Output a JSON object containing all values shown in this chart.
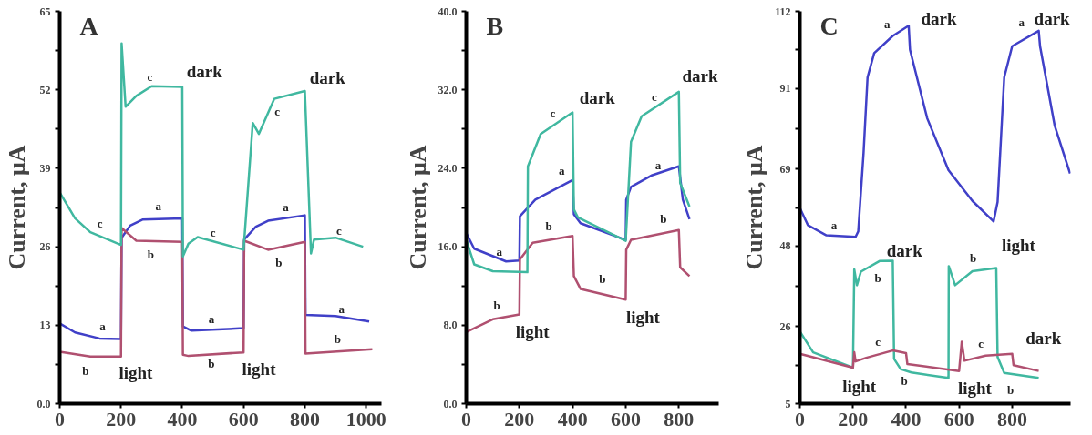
{
  "chart_data": [
    {
      "type": "line",
      "title": "A",
      "ylabel": "Current, μA",
      "xlim": [
        0,
        1050
      ],
      "ylim": [
        0,
        65
      ],
      "xticks": [
        0,
        200,
        400,
        600,
        800,
        1000
      ],
      "yticks": [
        {
          "value": 0,
          "label": "0.0"
        },
        {
          "value": 6.5,
          "label": null
        },
        13,
        {
          "value": 19.5,
          "label": null
        },
        26,
        {
          "value": 32.5,
          "label": null
        },
        39,
        {
          "value": 45.5,
          "label": null
        },
        52,
        {
          "value": 58.5,
          "label": null
        },
        65
      ],
      "grid": false,
      "series": [
        {
          "color": "#4040c8",
          "x": [
            0,
            50,
            130,
            200,
            202,
            230,
            270,
            400,
            402,
            430,
            600,
            602,
            640,
            680,
            800,
            802,
            900,
            1010
          ],
          "values": [
            13.3,
            11.8,
            10.8,
            10.7,
            27.5,
            29.5,
            30.5,
            30.7,
            12.8,
            12.1,
            12.5,
            27.2,
            29.3,
            30.3,
            31.2,
            14.7,
            14.5,
            13.6
          ]
        },
        {
          "color": "#b05070",
          "x": [
            0,
            100,
            200,
            202,
            250,
            400,
            402,
            420,
            600,
            602,
            680,
            800,
            802,
            1020
          ],
          "values": [
            8.6,
            7.8,
            7.8,
            29.1,
            27.0,
            26.8,
            8.1,
            7.9,
            8.5,
            27.0,
            25.5,
            26.8,
            8.3,
            9.0
          ]
        },
        {
          "color": "#40b8a0",
          "x": [
            0,
            50,
            100,
            200,
            202,
            215,
            250,
            300,
            400,
            402,
            420,
            450,
            600,
            630,
            650,
            700,
            800,
            820,
            830,
            900,
            990
          ],
          "values": [
            35,
            30.7,
            28.4,
            26.3,
            59.7,
            49.2,
            51,
            52.6,
            52.5,
            24.4,
            26.5,
            27.6,
            25.5,
            46.5,
            44.7,
            50.5,
            51.8,
            24.9,
            27.2,
            27.5,
            26
          ]
        }
      ],
      "annotations": [
        "dark",
        "dark",
        "light",
        "light",
        "a",
        "b",
        "c",
        "c",
        "a",
        "b",
        "c",
        "a",
        "b",
        "c",
        "a",
        "b",
        "c",
        "a",
        "b"
      ]
    },
    {
      "type": "line",
      "title": "B",
      "ylabel": "Current, μA",
      "xlim": [
        0,
        950
      ],
      "ylim": [
        0,
        40
      ],
      "xticks": [
        0,
        200,
        400,
        600,
        800
      ],
      "yticks": [
        {
          "value": 0,
          "label": "0.0"
        },
        {
          "value": 4,
          "label": null
        },
        {
          "value": 8,
          "label": "8.0"
        },
        {
          "value": 12,
          "label": null
        },
        {
          "value": 16,
          "label": "16.0"
        },
        {
          "value": 20,
          "label": null
        },
        {
          "value": 24,
          "label": "24.0"
        },
        {
          "value": 28,
          "label": null
        },
        {
          "value": 32,
          "label": "32.0"
        },
        {
          "value": 36,
          "label": null
        },
        {
          "value": 40,
          "label": "40.0"
        }
      ],
      "grid": false,
      "series": [
        {
          "color": "#4040c8",
          "x": [
            0,
            30,
            150,
            200,
            202,
            260,
            400,
            405,
            430,
            600,
            602,
            620,
            700,
            800,
            815,
            840
          ],
          "values": [
            17.4,
            15.8,
            14.5,
            14.6,
            19.1,
            20.8,
            22.8,
            19.3,
            18.4,
            16.7,
            20.8,
            22.1,
            23.3,
            24.2,
            20.8,
            18.8
          ]
        },
        {
          "color": "#b05070",
          "x": [
            0,
            100,
            200,
            202,
            250,
            400,
            405,
            430,
            600,
            602,
            620,
            800,
            805,
            840
          ],
          "values": [
            7.3,
            8.6,
            9.1,
            14.7,
            16.4,
            17.1,
            13.0,
            11.7,
            10.6,
            15.7,
            16.7,
            17.7,
            13.9,
            13.0
          ]
        },
        {
          "color": "#40b8a0",
          "x": [
            0,
            30,
            100,
            230,
            232,
            280,
            400,
            405,
            420,
            600,
            620,
            660,
            800,
            805,
            840
          ],
          "values": [
            16.7,
            14.2,
            13.5,
            13.4,
            24.2,
            27.5,
            29.7,
            19.8,
            19,
            16.6,
            26.7,
            29.3,
            31.8,
            22.5,
            20.1
          ]
        }
      ],
      "annotations": [
        "dark",
        "dark",
        "light",
        "light",
        "a",
        "b",
        "a",
        "c",
        "b",
        "b",
        "c",
        "a",
        "b"
      ]
    },
    {
      "type": "line",
      "title": "C",
      "ylabel": "Current, μA",
      "xlim": [
        0,
        1020
      ],
      "ylim": [
        5,
        112
      ],
      "xticks": [
        0,
        200,
        400,
        600,
        800
      ],
      "yticks": [
        5,
        {
          "value": 15.5,
          "label": null
        },
        26,
        {
          "value": 37,
          "label": null
        },
        48,
        {
          "value": 58.5,
          "label": null
        },
        69,
        {
          "value": 80,
          "label": null
        },
        91,
        {
          "value": 101.5,
          "label": null
        },
        112
      ],
      "grid": false,
      "series": [
        {
          "color": "#4040c8",
          "x": [
            0,
            30,
            100,
            210,
            220,
            240,
            255,
            280,
            350,
            410,
            415,
            480,
            560,
            650,
            730,
            745,
            770,
            800,
            900,
            905,
            960,
            1018
          ],
          "values": [
            58.4,
            53.7,
            50.9,
            50.5,
            52,
            73.4,
            94,
            100.6,
            105.3,
            108.1,
            101.5,
            82.8,
            68.7,
            60.3,
            54.7,
            60,
            94,
            102.5,
            106.7,
            102.5,
            80.9,
            67.8
          ]
        },
        {
          "color": "#40b8a0",
          "x": [
            0,
            50,
            200,
            205,
            215,
            230,
            300,
            350,
            355,
            380,
            420,
            560,
            561,
            585,
            650,
            740,
            745,
            770,
            900
          ],
          "values": [
            24.7,
            19,
            14.8,
            41.6,
            37.3,
            41,
            43.9,
            44,
            17.2,
            14.4,
            13.5,
            12.0,
            42.5,
            37.3,
            41.1,
            42.0,
            17.7,
            13.4,
            12.0
          ]
        },
        {
          "color": "#b05070",
          "x": [
            0,
            200,
            205,
            210,
            250,
            350,
            400,
            405,
            600,
            610,
            620,
            700,
            800,
            805,
            900
          ],
          "values": [
            18.6,
            14.8,
            19,
            16.5,
            17.5,
            19.5,
            18.8,
            15.8,
            13.9,
            21.9,
            16.7,
            18.1,
            18.6,
            15.5,
            13.9
          ]
        }
      ],
      "annotations": [
        "dark",
        "dark",
        "dark",
        "light",
        "dark",
        "light",
        "light",
        "a",
        "a",
        "a",
        "b",
        "b",
        "b",
        "b",
        "c",
        "c"
      ]
    }
  ]
}
